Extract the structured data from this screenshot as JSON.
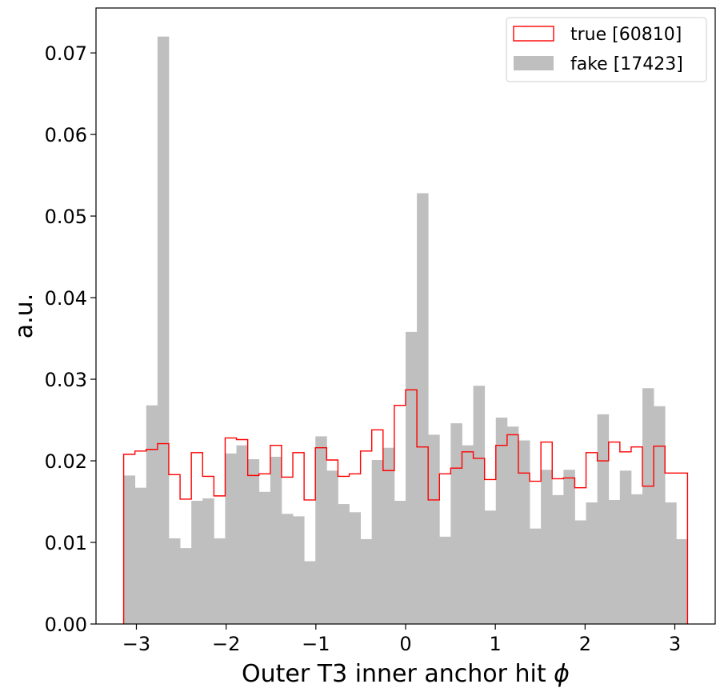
{
  "chart_data": {
    "type": "bar",
    "xlabel": "Outer T3 inner anchor hit ",
    "xlabel_symbol": "ϕ",
    "ylabel": "a.u.",
    "xlim": [
      -3.45,
      3.45
    ],
    "ylim": [
      0,
      0.0755
    ],
    "x_ticks": [
      -3,
      -2,
      -1,
      0,
      1,
      2,
      3
    ],
    "x_tick_labels": [
      "−3",
      "−2",
      "−1",
      "0",
      "1",
      "2",
      "3"
    ],
    "y_ticks": [
      0,
      0.01,
      0.02,
      0.03,
      0.04,
      0.05,
      0.06,
      0.07
    ],
    "y_tick_labels": [
      "0.00",
      "0.01",
      "0.02",
      "0.03",
      "0.04",
      "0.05",
      "0.06",
      "0.07"
    ],
    "bin_range": [
      -3.1416,
      3.1416
    ],
    "n_bins": 50,
    "legend_position": "top-right",
    "series": [
      {
        "name": "true [60810]",
        "style": "step",
        "color": "#ff0000",
        "values": [
          0.0208,
          0.0212,
          0.0214,
          0.0221,
          0.0183,
          0.0153,
          0.021,
          0.0181,
          0.0157,
          0.0228,
          0.0226,
          0.0182,
          0.0184,
          0.0219,
          0.018,
          0.021,
          0.0152,
          0.0216,
          0.0201,
          0.0181,
          0.0184,
          0.0212,
          0.0238,
          0.0188,
          0.0268,
          0.0287,
          0.0217,
          0.0152,
          0.0184,
          0.0191,
          0.0211,
          0.0203,
          0.0177,
          0.0219,
          0.0232,
          0.0185,
          0.0175,
          0.0223,
          0.0178,
          0.0179,
          0.0167,
          0.021,
          0.02,
          0.0223,
          0.0211,
          0.0217,
          0.0169,
          0.0218,
          0.0185,
          0.0185
        ]
      },
      {
        "name": "fake [17423]",
        "style": "filled",
        "color": "#bfbfbf",
        "values": [
          0.0182,
          0.0167,
          0.0268,
          0.072,
          0.0105,
          0.0093,
          0.0151,
          0.0154,
          0.0105,
          0.0209,
          0.0219,
          0.0202,
          0.0162,
          0.0205,
          0.0135,
          0.0132,
          0.0077,
          0.023,
          0.0188,
          0.0147,
          0.0137,
          0.0104,
          0.0201,
          0.0216,
          0.0151,
          0.0358,
          0.0528,
          0.0232,
          0.0107,
          0.0246,
          0.0219,
          0.0292,
          0.0139,
          0.0253,
          0.0242,
          0.0225,
          0.0117,
          0.0189,
          0.0158,
          0.0189,
          0.0127,
          0.0149,
          0.0257,
          0.0152,
          0.0188,
          0.0159,
          0.0289,
          0.0267,
          0.0149,
          0.0104
        ]
      }
    ]
  }
}
